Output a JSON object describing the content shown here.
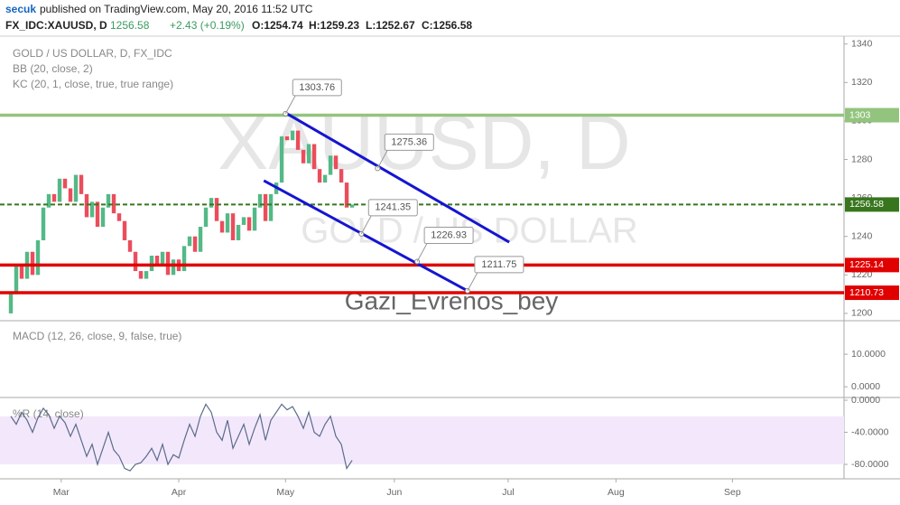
{
  "header": {
    "author": "secuk",
    "published": "published on TradingView.com, May 20, 2016 11:52 UTC",
    "symbol": "FX_IDC:XAUUSD, D",
    "last": "1256.58",
    "change": "+2.43 (+0.19%)",
    "open": "O:1254.74",
    "high": "H:1259.23",
    "low": "L:1252.67",
    "close": "C:1256.58"
  },
  "watermark": {
    "symbol": "XAUUSD, D",
    "name": "GOLD / US DOLLAR",
    "author": "Gazi_Evrenos_bey"
  },
  "chart_data": [
    {
      "type": "candlestick",
      "legend": [
        "GOLD / US DOLLAR, D, FX_IDC",
        "BB (20, close, 2)",
        "KC (20, 1, close, true, true range)"
      ],
      "up_color": "#53b987",
      "down_color": "#eb4d5c",
      "open": [
        1200,
        1210,
        1225,
        1218,
        1232,
        1220,
        1238,
        1255,
        1262,
        1258,
        1270,
        1265,
        1258,
        1272,
        1262,
        1250,
        1258,
        1245,
        1255,
        1262,
        1252,
        1248,
        1238,
        1232,
        1222,
        1218,
        1222,
        1230,
        1225,
        1232,
        1220,
        1228,
        1222,
        1235,
        1240,
        1232,
        1245,
        1255,
        1260,
        1248,
        1242,
        1252,
        1238,
        1246,
        1250,
        1243,
        1255,
        1262,
        1248,
        1262,
        1268,
        1292,
        1290,
        1295,
        1285,
        1278,
        1288,
        1275,
        1268,
        1272,
        1282,
        1275,
        1268,
        1255
      ],
      "close": [
        1210,
        1225,
        1218,
        1232,
        1220,
        1238,
        1255,
        1262,
        1258,
        1270,
        1265,
        1258,
        1272,
        1262,
        1250,
        1258,
        1245,
        1255,
        1262,
        1252,
        1248,
        1238,
        1232,
        1222,
        1218,
        1222,
        1230,
        1225,
        1232,
        1220,
        1228,
        1222,
        1235,
        1240,
        1232,
        1245,
        1255,
        1260,
        1248,
        1242,
        1252,
        1238,
        1246,
        1250,
        1243,
        1255,
        1262,
        1248,
        1262,
        1268,
        1292,
        1290,
        1295,
        1285,
        1278,
        1288,
        1275,
        1268,
        1272,
        1282,
        1275,
        1268,
        1255,
        1256.58
      ],
      "xlim": [
        -2,
        153.8
      ],
      "ylim": [
        1196.2,
        1344.1
      ],
      "yticks": [
        1200,
        1220,
        1240,
        1260,
        1280,
        1300,
        1320,
        1340
      ],
      "xticks": [
        {
          "value": 9.3,
          "label": "Mar"
        },
        {
          "value": 31,
          "label": "Apr"
        },
        {
          "value": 50.7,
          "label": "May"
        },
        {
          "value": 70.8,
          "label": "Jun"
        },
        {
          "value": 91.8,
          "label": "Jul"
        },
        {
          "value": 111.7,
          "label": "Aug"
        },
        {
          "value": 133.2,
          "label": "Sep"
        }
      ],
      "levels": [
        {
          "value": 1303,
          "color": "#93c47d"
        },
        {
          "value": 1256.58,
          "color": "#38761d",
          "dashed": true
        },
        {
          "value": 1225.14,
          "color": "#e00000"
        },
        {
          "value": 1210.73,
          "color": "#e00000"
        }
      ],
      "trendlines": [
        {
          "x": [
            51,
            92
          ],
          "y": [
            1303.76,
            1237
          ],
          "color": "#1515d0"
        },
        {
          "x": [
            46.7,
            84.3
          ],
          "y": [
            1269,
            1211.75
          ],
          "color": "#1515d0"
        }
      ],
      "callouts": [
        {
          "x": 50.7,
          "value": 1303.76
        },
        {
          "x": 67.7,
          "value": 1275.36
        },
        {
          "x": 64.7,
          "value": 1241.35
        },
        {
          "x": 75,
          "value": 1226.93
        },
        {
          "x": 84.3,
          "value": 1211.75
        }
      ]
    },
    {
      "type": "macd",
      "legend": "MACD (12, 26, close, 9, false, true)",
      "ylim": [
        -3.3,
        20.3
      ],
      "yticks": [
        {
          "value": 0,
          "label": "0.0000"
        },
        {
          "value": 10,
          "label": "10.0000"
        }
      ]
    },
    {
      "type": "williams",
      "legend": "%R (14, close)",
      "color": "#5b6b8c",
      "ylim": [
        -98,
        3.4
      ],
      "yticks": [
        {
          "value": 0,
          "label": "0.0000"
        },
        {
          "value": -40,
          "label": "-40.0000"
        },
        {
          "value": -80,
          "label": "-80.0000"
        }
      ],
      "values": [
        -20,
        -30,
        -15,
        -25,
        -40,
        -22,
        -10,
        -18,
        -35,
        -20,
        -28,
        -45,
        -30,
        -50,
        -70,
        -55,
        -80,
        -60,
        -40,
        -62,
        -70,
        -85,
        -88,
        -80,
        -78,
        -70,
        -60,
        -75,
        -55,
        -80,
        -68,
        -72,
        -50,
        -30,
        -45,
        -20,
        -5,
        -15,
        -40,
        -50,
        -25,
        -60,
        -45,
        -30,
        -55,
        -35,
        -18,
        -50,
        -25,
        -15,
        -5,
        -12,
        -8,
        -20,
        -35,
        -15,
        -40,
        -45,
        -30,
        -20,
        -45,
        -55,
        -85,
        -75
      ]
    }
  ]
}
